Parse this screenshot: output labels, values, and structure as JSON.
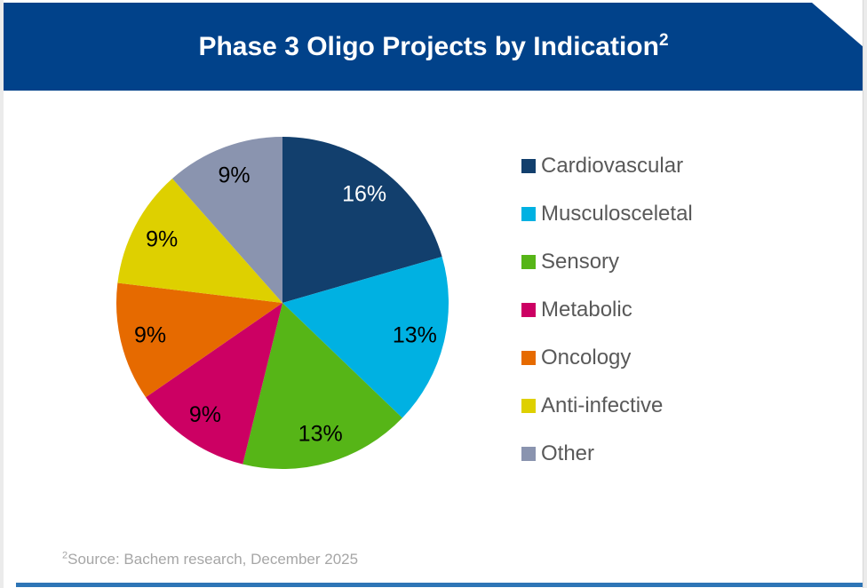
{
  "header": {
    "title": "Phase 3 Oligo Projects by Indication",
    "superscript": "2",
    "bg_color": "#01428A",
    "text_color": "#FFFFFF"
  },
  "chart_data": {
    "type": "pie",
    "title": "Phase 3 Oligo Projects by Indication²",
    "categories": [
      "Cardiovascular",
      "Musculosceletal",
      "Sensory",
      "Metabolic",
      "Oncology",
      "Anti-infective",
      "Other"
    ],
    "values": [
      16,
      13,
      13,
      9,
      9,
      9,
      9
    ],
    "labels": [
      "16%",
      "13%",
      "13%",
      "9%",
      "9%",
      "9%",
      "9%"
    ],
    "colors": [
      "#123F6D",
      "#00B1E2",
      "#56B517",
      "#CC0063",
      "#E66A00",
      "#DED000",
      "#8A94AF"
    ],
    "label_colors": [
      "#FFFFFF",
      "#000000",
      "#000000",
      "#000000",
      "#000000",
      "#000000",
      "#000000"
    ],
    "start_angle_deg": 0,
    "direction": "clockwise",
    "legend_position": "right",
    "legend_text_color": "#595959"
  },
  "footer": {
    "source_superscript": "2",
    "source_text": "Source: Bachem research, December 2025",
    "text_color": "#A6A6A6",
    "bar_color": "#2E75B6"
  }
}
